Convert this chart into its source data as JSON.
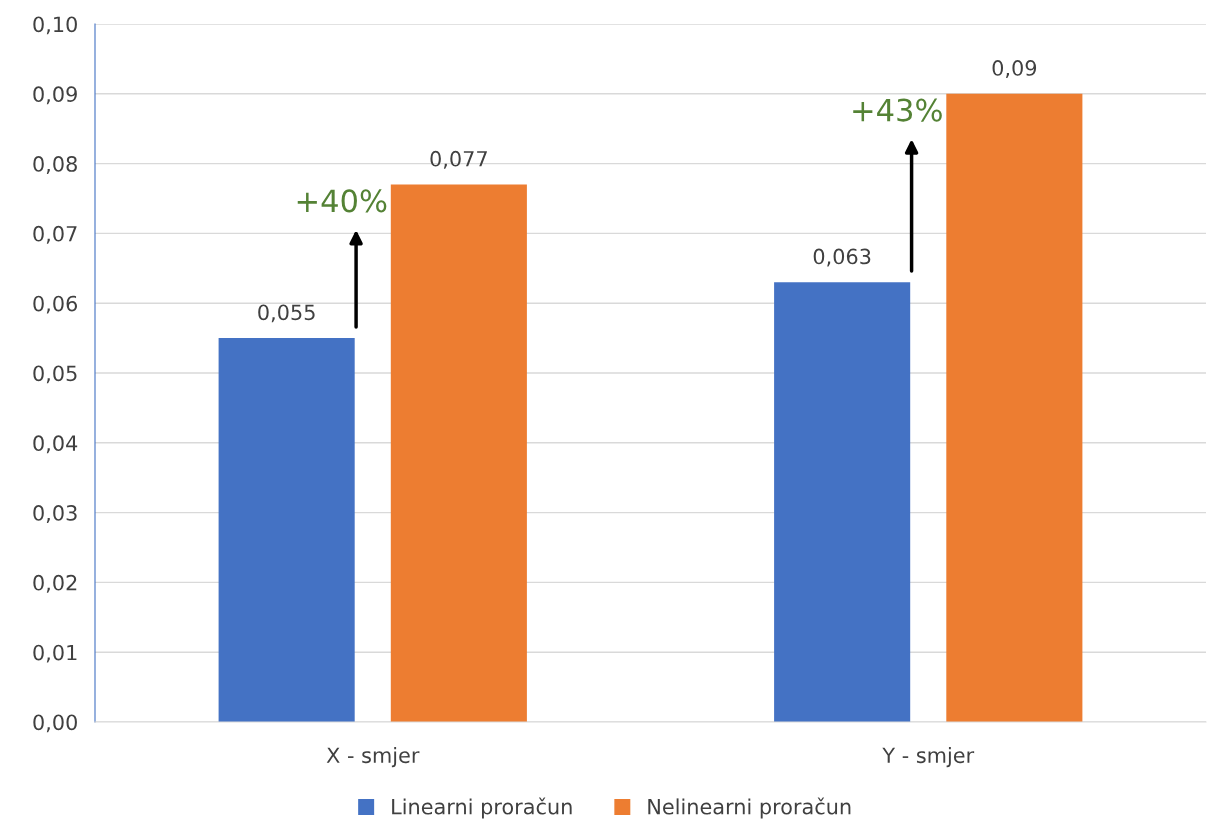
{
  "chart_data": {
    "type": "bar",
    "categories": [
      "X - smjer",
      "Y - smjer"
    ],
    "series": [
      {
        "name": "Linearni proračun",
        "color": "#4472c4",
        "values": [
          0.055,
          0.063
        ],
        "value_labels": [
          "0,055",
          "0,063"
        ]
      },
      {
        "name": "Nelinearni proračun",
        "color": "#ed7d31",
        "values": [
          0.077,
          0.09
        ],
        "value_labels": [
          "0,077",
          "0,09"
        ]
      }
    ],
    "ylim": [
      0,
      0.1
    ],
    "yticks": [
      {
        "value": 0,
        "label": "0,00"
      },
      {
        "value": 0.01,
        "label": "0,01"
      },
      {
        "value": 0.02,
        "label": "0,02"
      },
      {
        "value": 0.03,
        "label": "0,03"
      },
      {
        "value": 0.04,
        "label": "0,04"
      },
      {
        "value": 0.05,
        "label": "0,05"
      },
      {
        "value": 0.06,
        "label": "0,06"
      },
      {
        "value": 0.07,
        "label": "0,07"
      },
      {
        "value": 0.08,
        "label": "0,08"
      },
      {
        "value": 0.09,
        "label": "0,09"
      },
      {
        "value": 0.1,
        "label": "0,10"
      }
    ],
    "annotations": [
      "+40%",
      "+43%"
    ],
    "grid": "y",
    "legend": "bottom"
  }
}
